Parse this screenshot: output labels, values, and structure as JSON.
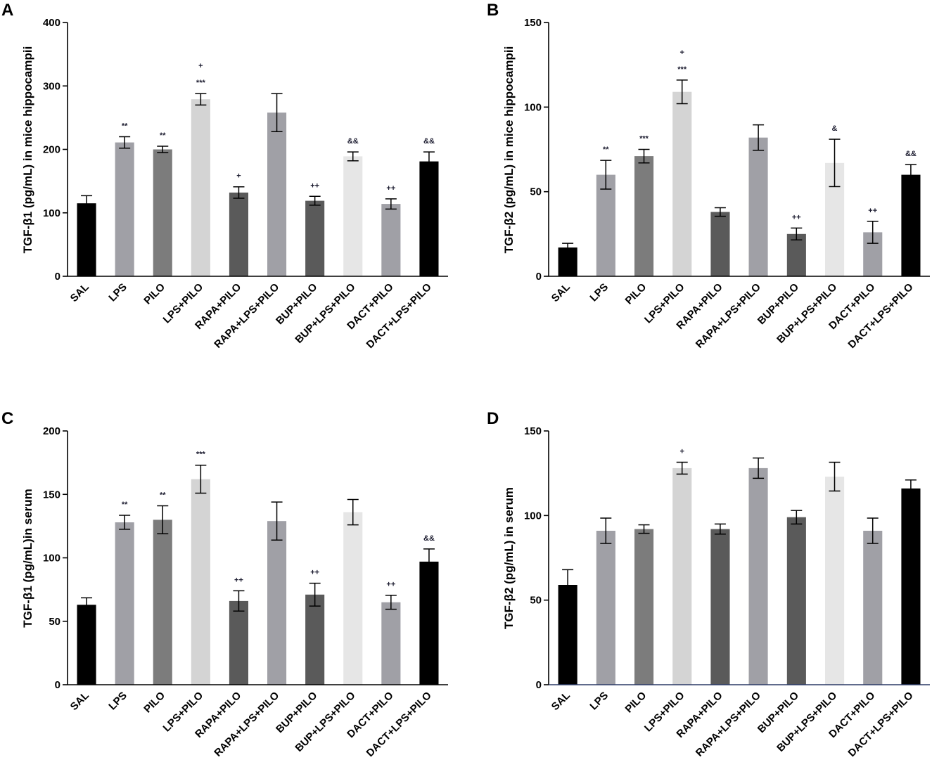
{
  "figure": {
    "panels": [
      "A",
      "B",
      "C",
      "D"
    ]
  },
  "chart_data": [
    {
      "panel": "A",
      "type": "bar",
      "ylabel": "TGF-β1 (pg/mL)  in mice hippocampii",
      "ylim": [
        0,
        400
      ],
      "yticks": [
        0,
        100,
        200,
        300,
        400
      ],
      "categories": [
        "SAL",
        "LPS",
        "PILO",
        "LPS+PILO",
        "RAPA+PILO",
        "RAPA+LPS+PILO",
        "BUP+PILO",
        "BUP+LPS+PILO",
        "DACT+PILO",
        "DACT+LPS+PILO"
      ],
      "values": [
        115,
        211,
        200,
        279,
        132,
        258,
        119,
        189,
        114,
        181
      ],
      "errors": [
        12,
        9,
        5,
        9,
        9,
        30,
        7,
        7,
        8,
        15
      ],
      "colors": [
        "#000000",
        "#a0a0a6",
        "#7c7c7c",
        "#d4d4d4",
        "#5a5a5a",
        "#a0a0a6",
        "#5a5a5a",
        "#e6e6e6",
        "#a0a0a6",
        "#000000"
      ],
      "annotations": [
        [
          "",
          ""
        ],
        [
          "**",
          ""
        ],
        [
          "**",
          ""
        ],
        [
          "***",
          "+"
        ],
        [
          "+",
          ""
        ],
        [
          "",
          ""
        ],
        [
          "++",
          ""
        ],
        [
          "&&",
          ""
        ],
        [
          "++",
          ""
        ],
        [
          "&&",
          ""
        ]
      ]
    },
    {
      "panel": "B",
      "type": "bar",
      "ylabel": "TGF-β2 (pg/mL)  in mice hippocampii",
      "ylim": [
        0,
        150
      ],
      "yticks": [
        0,
        50,
        100,
        150
      ],
      "categories": [
        "SAL",
        "LPS",
        "PILO",
        "LPS+PILO",
        "RAPA+PILO",
        "RAPA+LPS+PILO",
        "BUP+PILO",
        "BUP+LPS+PILO",
        "DACT+PILO",
        "DACT+LPS+PILO"
      ],
      "values": [
        17,
        60,
        71,
        109,
        38,
        82,
        25,
        67,
        26,
        60
      ],
      "errors": [
        2.5,
        8.5,
        4,
        7,
        2.5,
        7.5,
        3.5,
        14,
        6.5,
        6
      ],
      "colors": [
        "#000000",
        "#a0a0a6",
        "#7c7c7c",
        "#d4d4d4",
        "#5a5a5a",
        "#a0a0a6",
        "#5a5a5a",
        "#e6e6e6",
        "#a0a0a6",
        "#000000"
      ],
      "annotations": [
        [
          "",
          ""
        ],
        [
          "**",
          ""
        ],
        [
          "***",
          ""
        ],
        [
          "***",
          "+"
        ],
        [
          "",
          ""
        ],
        [
          "",
          ""
        ],
        [
          "++",
          ""
        ],
        [
          "&",
          ""
        ],
        [
          "++",
          ""
        ],
        [
          "&&",
          ""
        ]
      ]
    },
    {
      "panel": "C",
      "type": "bar",
      "ylabel": "TGF-β1 (pg/mL)in serum",
      "ylim": [
        0,
        200
      ],
      "yticks": [
        0,
        50,
        100,
        150,
        200
      ],
      "categories": [
        "SAL",
        "LPS",
        "PILO",
        "LPS+PILO",
        "RAPA+PILO",
        "RAPA+LPS+PILO",
        "BUP+PILO",
        "BUP+LPS+PILO",
        "DACT+PILO",
        "DACT+LPS+PILO"
      ],
      "values": [
        63,
        128,
        130,
        162,
        66,
        129,
        71,
        136,
        65,
        97
      ],
      "errors": [
        5.5,
        5.5,
        11,
        11,
        8,
        15,
        9,
        10,
        5.5,
        10
      ],
      "colors": [
        "#000000",
        "#a0a0a6",
        "#7c7c7c",
        "#d4d4d4",
        "#5a5a5a",
        "#a0a0a6",
        "#5a5a5a",
        "#e6e6e6",
        "#a0a0a6",
        "#000000"
      ],
      "annotations": [
        [
          "",
          ""
        ],
        [
          "**",
          ""
        ],
        [
          "**",
          ""
        ],
        [
          "***",
          ""
        ],
        [
          "++",
          ""
        ],
        [
          "",
          ""
        ],
        [
          "++",
          ""
        ],
        [
          "",
          ""
        ],
        [
          "++",
          ""
        ],
        [
          "&&",
          ""
        ]
      ]
    },
    {
      "panel": "D",
      "type": "bar",
      "ylabel": "TGF-β2 (pg/mL) in serum",
      "ylim": [
        0,
        150
      ],
      "yticks": [
        0,
        50,
        100,
        150
      ],
      "categories": [
        "SAL",
        "LPS",
        "PILO",
        "LPS+PILO",
        "RAPA+PILO",
        "RAPA+LPS+PILO",
        "BUP+PILO",
        "BUP+LPS+PILO",
        "DACT+PILO",
        "DACT+LPS+PILO"
      ],
      "values": [
        59,
        91,
        92,
        128,
        92,
        128,
        99,
        123,
        91,
        116
      ],
      "errors": [
        9,
        7.5,
        2.5,
        3.5,
        3,
        6,
        4,
        8.5,
        7.5,
        5
      ],
      "colors": [
        "#000000",
        "#a0a0a6",
        "#7c7c7c",
        "#d4d4d4",
        "#5a5a5a",
        "#a0a0a6",
        "#5a5a5a",
        "#e6e6e6",
        "#a0a0a6",
        "#000000"
      ],
      "annotations": [
        [
          "",
          ""
        ],
        [
          "",
          ""
        ],
        [
          "",
          ""
        ],
        [
          "+",
          ""
        ],
        [
          "",
          ""
        ],
        [
          "",
          ""
        ],
        [
          "",
          ""
        ],
        [
          "",
          ""
        ],
        [
          "",
          ""
        ],
        [
          "",
          ""
        ]
      ]
    }
  ]
}
